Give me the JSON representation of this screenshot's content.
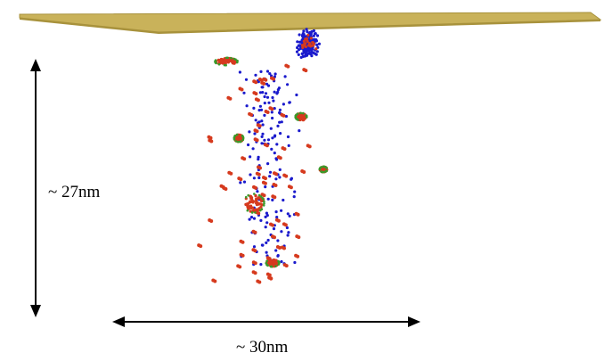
{
  "dimensions": {
    "vertical_label": "~ 27nm",
    "horizontal_label": "~ 30nm"
  },
  "colors": {
    "plate": "#c9b25a",
    "plate_edge": "#a8923c",
    "blue_atoms": "#1a1acc",
    "red_atoms": "#d63a1e",
    "green_atoms": "#3a9a2a",
    "arrows": "#000000"
  }
}
